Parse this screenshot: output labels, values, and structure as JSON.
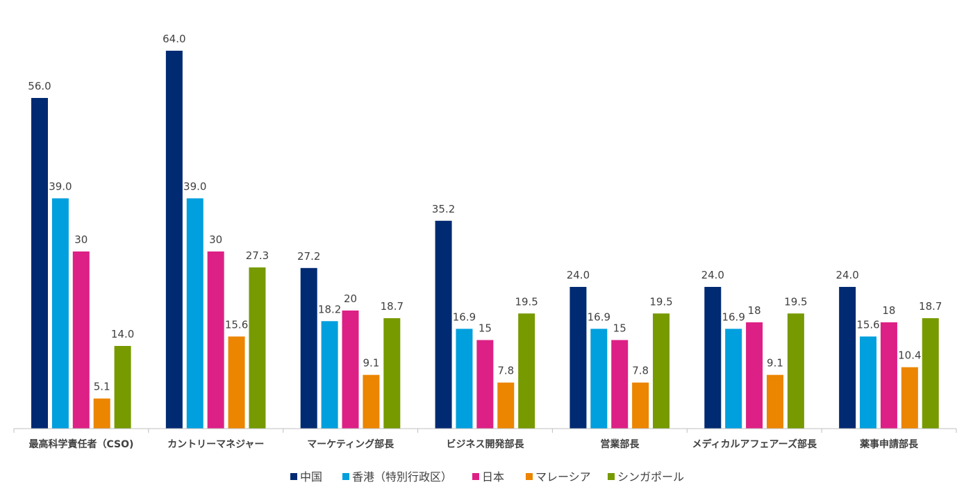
{
  "chart_data": {
    "type": "bar",
    "title": "",
    "xlabel": "",
    "ylabel": "",
    "ylim": [
      0,
      64
    ],
    "grid": false,
    "legend_position": "bottom",
    "categories": [
      "最高科学責任者（CSO)",
      "カントリーマネジャー",
      "マーケティング部長",
      "ビジネス開発部長",
      "営業部長",
      "メディカルアフェアーズ部長",
      "薬事申請部長"
    ],
    "series": [
      {
        "name": "中国",
        "color": "#002a72",
        "values": [
          56.0,
          64.0,
          27.2,
          35.2,
          24.0,
          24.0,
          24.0
        ],
        "labels": [
          "56.0",
          "64.0",
          "27.2",
          "35.2",
          "24.0",
          "24.0",
          "24.0"
        ]
      },
      {
        "name": "香港（特別行政区）",
        "color": "#009fdd",
        "values": [
          39.0,
          39.0,
          18.2,
          16.9,
          16.9,
          16.9,
          15.6
        ],
        "labels": [
          "39.0",
          "39.0",
          "18.2",
          "16.9",
          "16.9",
          "16.9",
          "15.6"
        ]
      },
      {
        "name": "日本",
        "color": "#dd2085",
        "values": [
          30,
          30,
          20,
          15,
          15,
          18,
          18
        ],
        "labels": [
          "30",
          "30",
          "20",
          "15",
          "15",
          "18",
          "18"
        ]
      },
      {
        "name": "マレーシア",
        "color": "#ec8500",
        "values": [
          5.1,
          15.6,
          9.1,
          7.8,
          7.8,
          9.1,
          10.4
        ],
        "labels": [
          "5.1",
          "15.6",
          "9.1",
          "7.8",
          "7.8",
          "9.1",
          "10.4"
        ]
      },
      {
        "name": "シンガポール",
        "color": "#769a00",
        "values": [
          14.0,
          27.3,
          18.7,
          19.5,
          19.5,
          19.5,
          18.7
        ],
        "labels": [
          "14.0",
          "27.3",
          "18.7",
          "19.5",
          "19.5",
          "19.5",
          "18.7"
        ]
      }
    ]
  }
}
